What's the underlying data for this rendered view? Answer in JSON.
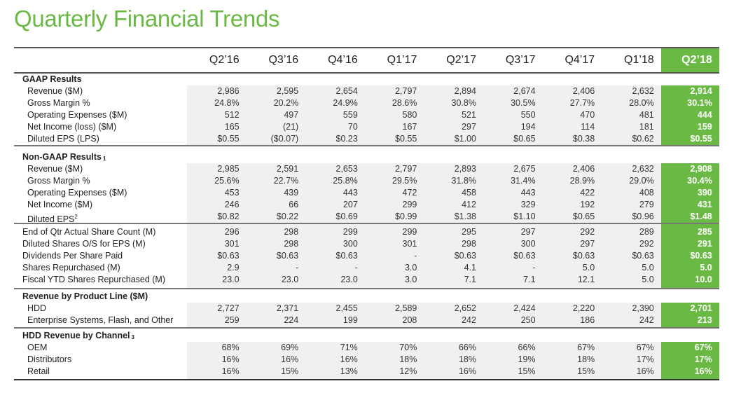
{
  "title": "Quarterly Financial Trends",
  "accent": "#6ab944",
  "columns": [
    "Q2’16",
    "Q3’16",
    "Q4’16",
    "Q1’17",
    "Q2’17",
    "Q3’17",
    "Q4’17",
    "Q1’18",
    "Q2’18"
  ],
  "sections": [
    {
      "title": "GAAP Results",
      "sup": "",
      "rows": [
        {
          "label": "Revenue ($M)",
          "values": [
            "2,986",
            "2,595",
            "2,654",
            "2,797",
            "2,894",
            "2,674",
            "2,406",
            "2,632",
            "2,914"
          ]
        },
        {
          "label": "Gross Margin %",
          "values": [
            "24.8%",
            "20.2%",
            "24.9%",
            "28.6%",
            "30.8%",
            "30.5%",
            "27.7%",
            "28.0%",
            "30.1%"
          ]
        },
        {
          "label": "Operating Expenses ($M)",
          "values": [
            "512",
            "497",
            "559",
            "580",
            "521",
            "550",
            "470",
            "481",
            "444"
          ]
        },
        {
          "label": "Net Income (loss) ($M)",
          "values": [
            "165",
            "(21)",
            "70",
            "167",
            "297",
            "194",
            "114",
            "181",
            "159"
          ]
        },
        {
          "label": "Diluted EPS (LPS)",
          "values": [
            "$0.55",
            "($0.07)",
            "$0.23",
            "$0.55",
            "$1.00",
            "$0.65",
            "$0.38",
            "$0.62",
            "$0.55"
          ]
        }
      ]
    },
    {
      "title": "Non-GAAP Results",
      "sup": "1",
      "rows": [
        {
          "label": "Revenue ($M)",
          "values": [
            "2,985",
            "2,591",
            "2,653",
            "2,797",
            "2,893",
            "2,675",
            "2,406",
            "2,632",
            "2,908"
          ]
        },
        {
          "label": "Gross Margin %",
          "values": [
            "25.6%",
            "22.7%",
            "25.8%",
            "29.5%",
            "31.8%",
            "31.4%",
            "28.9%",
            "29.0%",
            "30.4%"
          ]
        },
        {
          "label": "Operating Expenses ($M)",
          "values": [
            "453",
            "439",
            "443",
            "472",
            "458",
            "443",
            "422",
            "408",
            "390"
          ]
        },
        {
          "label": "Net Income ($M)",
          "values": [
            "246",
            "66",
            "207",
            "299",
            "412",
            "329",
            "192",
            "279",
            "431"
          ]
        },
        {
          "label": "Diluted EPS",
          "sup": "2",
          "values": [
            "$0.82",
            "$0.22",
            "$0.69",
            "$0.99",
            "$1.38",
            "$1.10",
            "$0.65",
            "$0.96",
            "$1.48"
          ]
        }
      ]
    },
    {
      "title": "",
      "sup": "",
      "rows": [
        {
          "label": "End of Qtr Actual Share Count (M)",
          "values": [
            "296",
            "298",
            "299",
            "299",
            "295",
            "297",
            "292",
            "289",
            "285"
          ]
        },
        {
          "label": "Diluted Shares O/S for EPS (M)",
          "values": [
            "301",
            "298",
            "300",
            "301",
            "298",
            "300",
            "297",
            "292",
            "291"
          ]
        },
        {
          "label": "Dividends Per Share Paid",
          "values": [
            "$0.63",
            "$0.63",
            "$0.63",
            "-",
            "$0.63",
            "$0.63",
            "$0.63",
            "$0.63",
            "$0.63"
          ]
        },
        {
          "label": "Shares Repurchased (M)",
          "values": [
            "2.9",
            "-",
            "-",
            "3.0",
            "4.1",
            "-",
            "5.0",
            "5.0",
            "5.0"
          ]
        },
        {
          "label": "Fiscal YTD Shares Repurchased (M)",
          "values": [
            "23.0",
            "23.0",
            "23.0",
            "3.0",
            "7.1",
            "7.1",
            "12.1",
            "5.0",
            "10.0"
          ]
        }
      ]
    },
    {
      "title": "Revenue by Product Line ($M)",
      "sup": "",
      "rows": [
        {
          "label": "HDD",
          "values": [
            "2,727",
            "2,371",
            "2,455",
            "2,589",
            "2,652",
            "2,424",
            "2,220",
            "2,390",
            "2,701"
          ]
        },
        {
          "label": "Enterprise Systems, Flash, and Other",
          "values": [
            "259",
            "224",
            "199",
            "208",
            "242",
            "250",
            "186",
            "242",
            "213"
          ]
        }
      ]
    },
    {
      "title": "HDD Revenue by Channel",
      "sup": "3",
      "rows": [
        {
          "label": "OEM",
          "values": [
            "68%",
            "69%",
            "71%",
            "70%",
            "66%",
            "66%",
            "67%",
            "67%",
            "67%"
          ]
        },
        {
          "label": "Distributors",
          "values": [
            "16%",
            "16%",
            "16%",
            "18%",
            "18%",
            "19%",
            "18%",
            "17%",
            "17%"
          ]
        },
        {
          "label": "Retail",
          "values": [
            "16%",
            "15%",
            "13%",
            "12%",
            "16%",
            "15%",
            "15%",
            "16%",
            "16%"
          ]
        }
      ]
    }
  ]
}
